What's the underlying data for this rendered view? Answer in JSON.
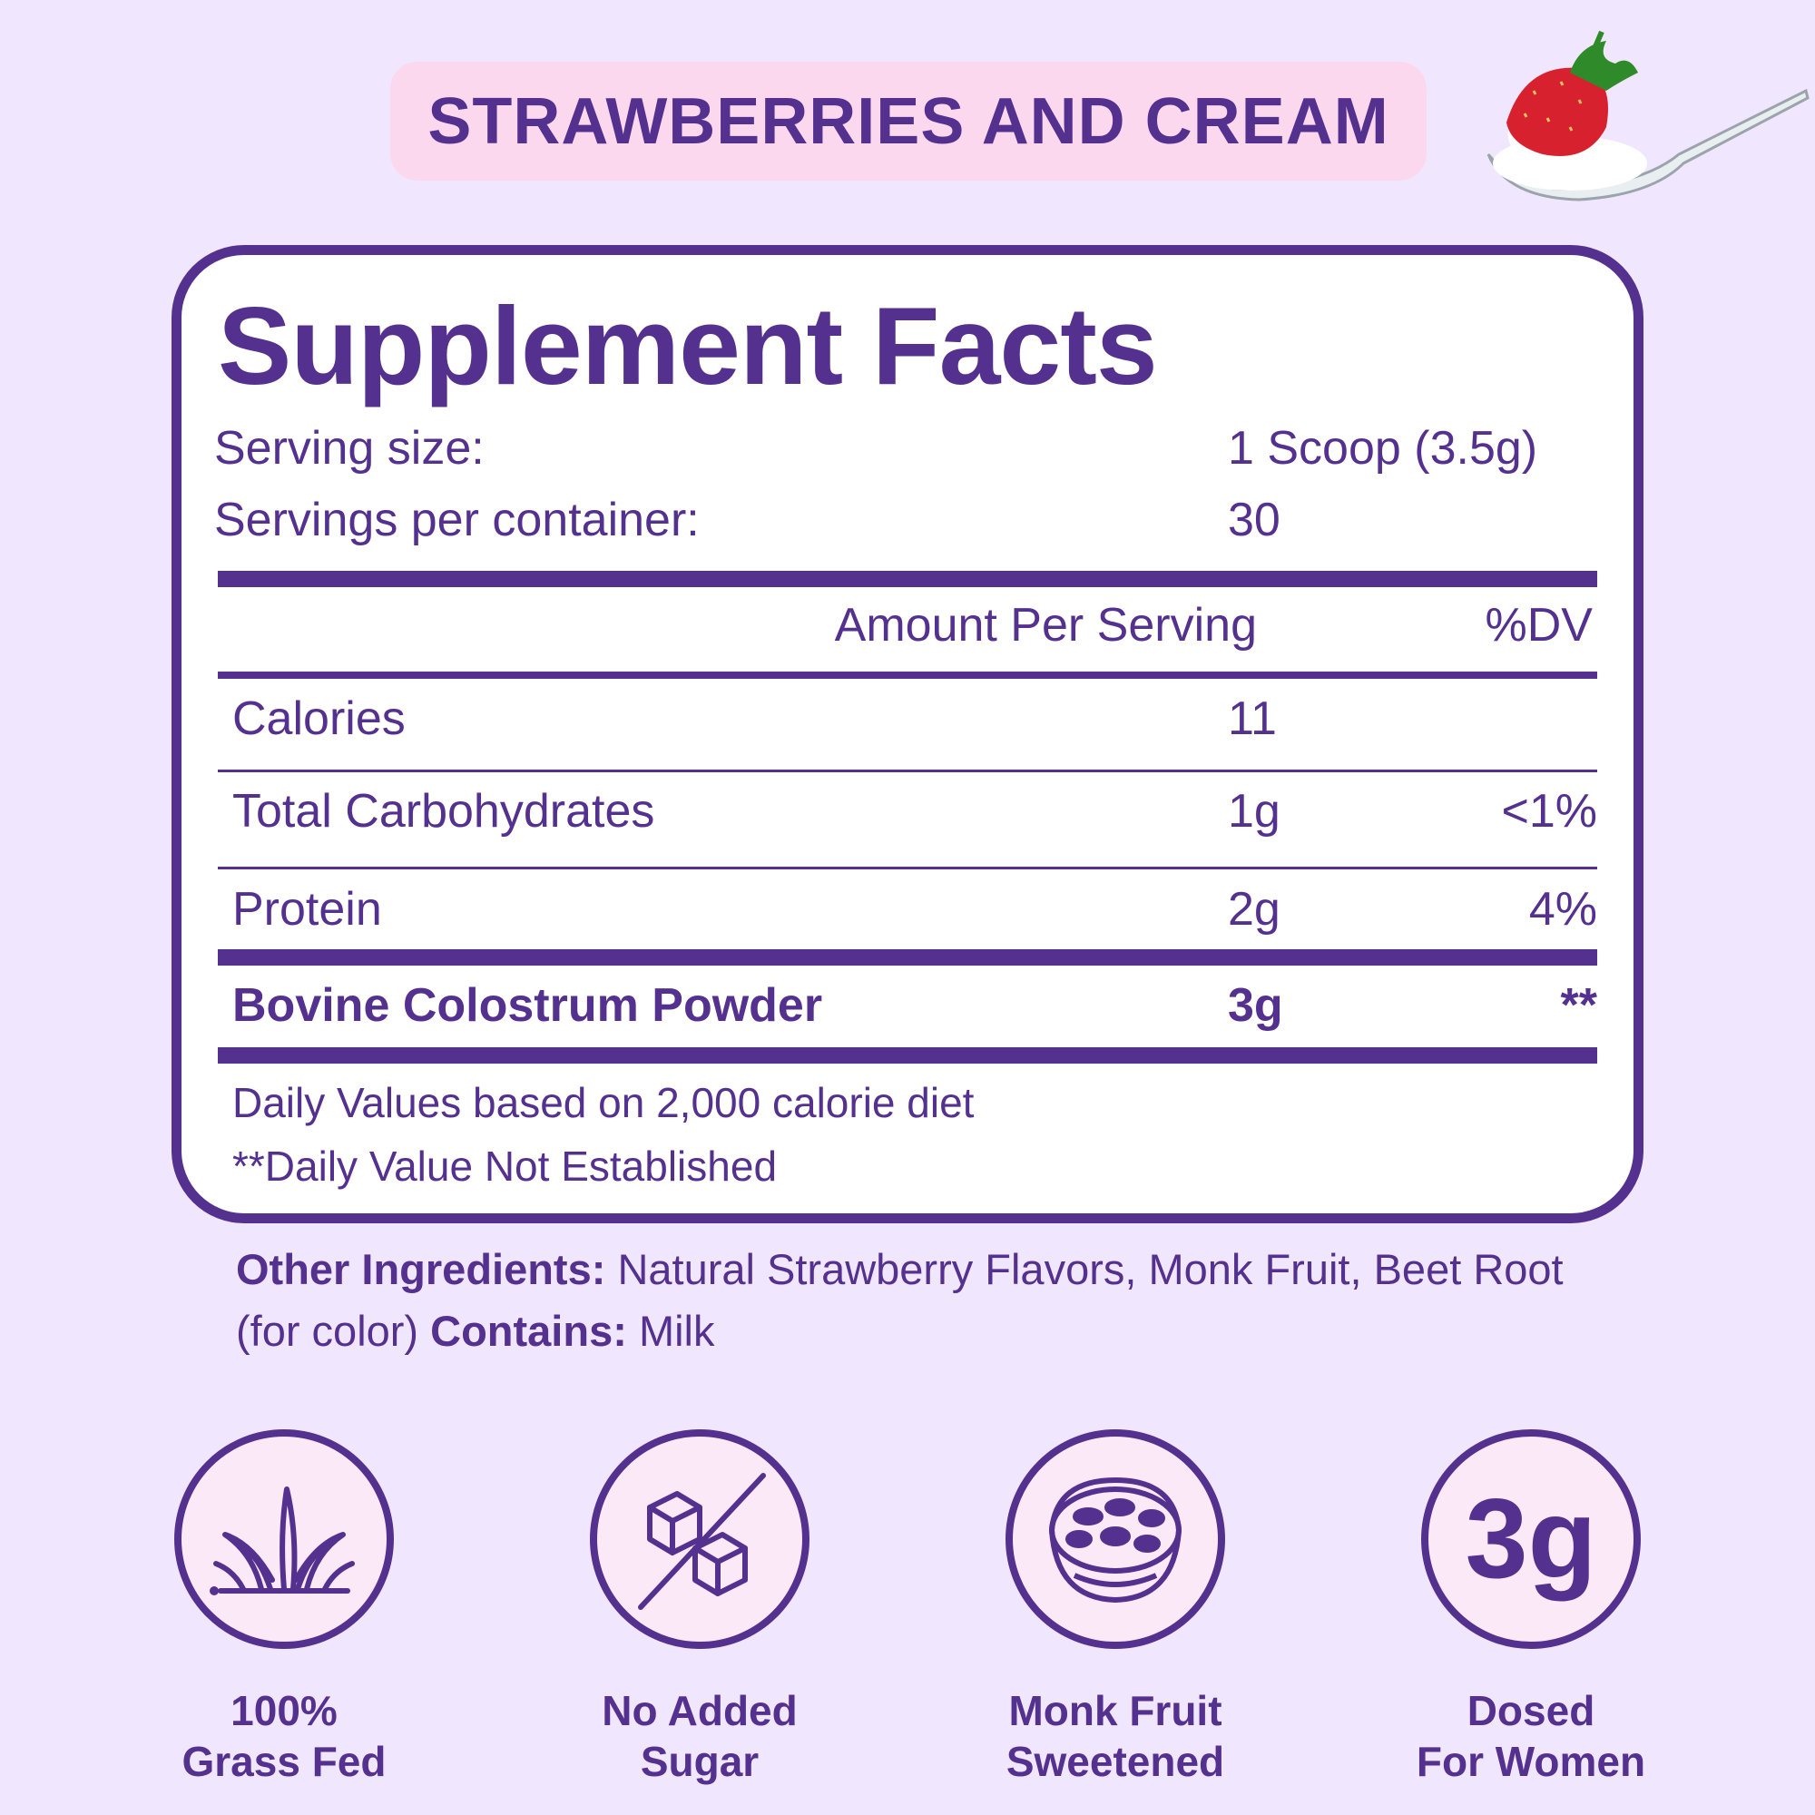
{
  "flavor": "STRAWBERRIES AND CREAM",
  "facts": {
    "title": "Supplement Facts",
    "serving_size_label": "Serving size:",
    "serving_size_value": "1 Scoop (3.5g)",
    "servings_label": "Servings per container:",
    "servings_value": "30",
    "amount_header": "Amount Per Serving",
    "dv_header": "%DV",
    "rows": [
      {
        "name": "Calories",
        "amount": "11",
        "dv": ""
      },
      {
        "name": "Total Carbohydrates",
        "amount": "1g",
        "dv": "<1%"
      },
      {
        "name": "Protein",
        "amount": "2g",
        "dv": "4%"
      },
      {
        "name": "Bovine Colostrum Powder",
        "amount": "3g",
        "dv": "**"
      }
    ],
    "footnote_1": "Daily Values based on 2,000 calorie diet",
    "footnote_2": "**Daily Value Not Established"
  },
  "ingredients": {
    "label": "Other Ingredients:",
    "text": "Natural Strawberry Flavors, Monk Fruit, Beet Root (for color)",
    "contains_label": "Contains:",
    "contains_text": "Milk"
  },
  "features": [
    {
      "icon": "grass-icon",
      "line1": "100%",
      "line2": "Grass Fed"
    },
    {
      "icon": "sugar-cubes-crossed-icon",
      "line1": "No Added",
      "line2": "Sugar"
    },
    {
      "icon": "monk-fruit-icon",
      "line1": "Monk Fruit",
      "line2": "Sweetened"
    },
    {
      "icon": "three-grams-icon",
      "badge": "3g",
      "line1": "Dosed",
      "line2": "For Women"
    }
  ],
  "colors": {
    "primary": "#55318f",
    "background": "#f0e7fe",
    "pill": "#fcd8ef",
    "icon_fill": "#fbe9f7"
  }
}
